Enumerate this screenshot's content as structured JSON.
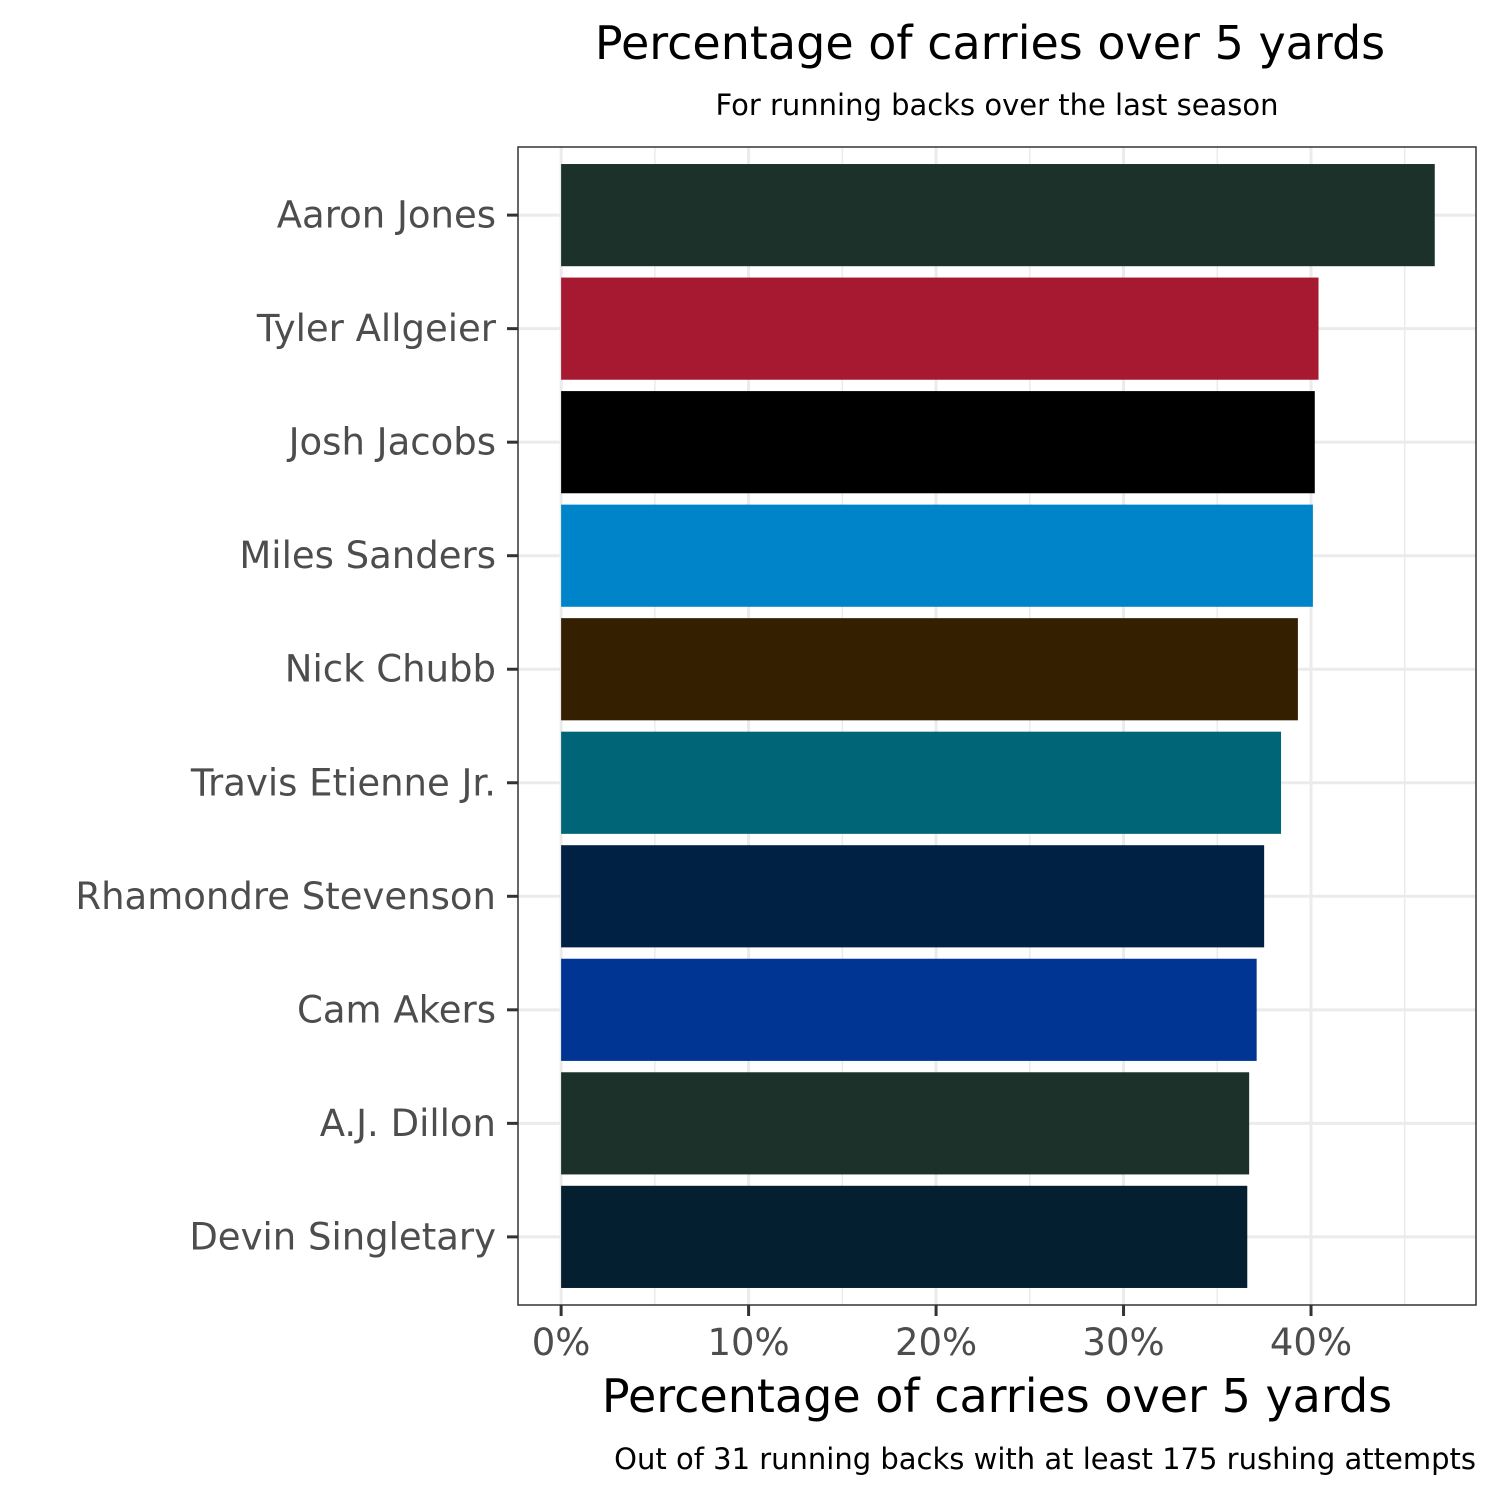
{
  "chart_data": {
    "type": "bar",
    "orientation": "horizontal",
    "title": "Percentage of carries over 5 yards",
    "subtitle": "For running backs over the last season",
    "xlabel": "Percentage of carries over 5 yards",
    "caption": "Out of 31 running backs with at least 175 rushing attempts",
    "ylabel": "",
    "xlim": [
      -0.023,
      0.488
    ],
    "x_ticks": [
      0,
      0.1,
      0.2,
      0.3,
      0.4
    ],
    "x_tick_labels": [
      "0%",
      "10%",
      "20%",
      "30%",
      "40%"
    ],
    "grid": true,
    "categories": [
      "Aaron Jones",
      "Tyler Allgeier",
      "Josh Jacobs",
      "Miles Sanders",
      "Nick Chubb",
      "Travis Etienne Jr.",
      "Rhamondre Stevenson",
      "Cam Akers",
      "A.J. Dillon",
      "Devin Singletary"
    ],
    "values": [
      0.466,
      0.404,
      0.402,
      0.401,
      0.393,
      0.384,
      0.375,
      0.371,
      0.367,
      0.366
    ],
    "colors": [
      "#1c312a",
      "#a61931",
      "#000000",
      "#0084c9",
      "#342000",
      "#006677",
      "#002144",
      "#003594",
      "#1c312a",
      "#041f2f"
    ]
  }
}
